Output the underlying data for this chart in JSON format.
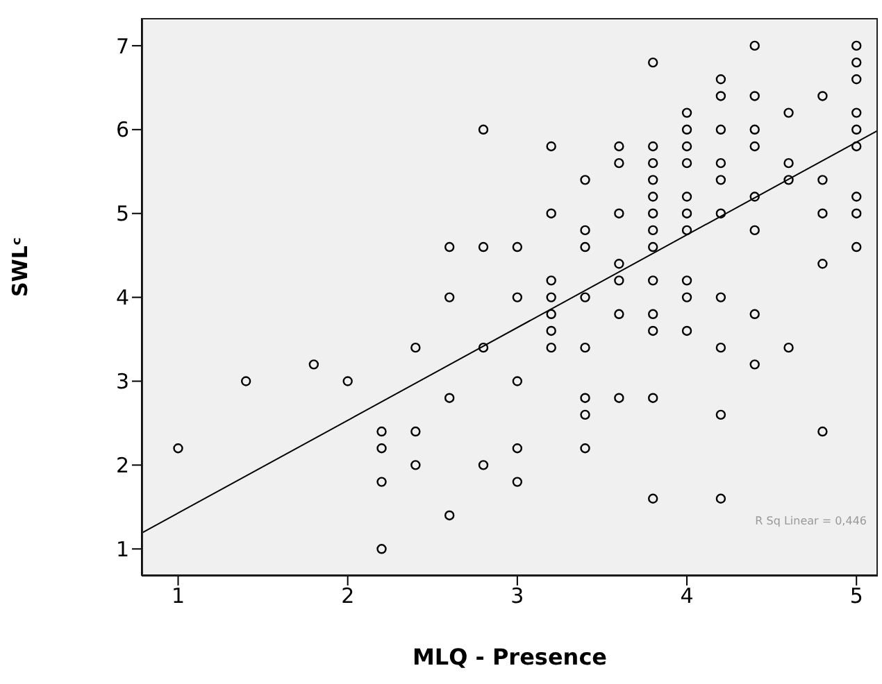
{
  "chart_data": {
    "type": "scatter",
    "xlabel": "MLQ - Presence",
    "ylabel": "SWLᶜ",
    "xlim": [
      0.785,
      5.126
    ],
    "ylim": [
      0.68,
      7.33
    ],
    "xticks": [
      1,
      2,
      3,
      4,
      5
    ],
    "yticks": [
      1,
      2,
      3,
      4,
      5,
      6,
      7
    ],
    "annotations": [
      "R Sq Linear = 0,446"
    ],
    "series": [
      {
        "marker": "circle",
        "color": "#000000",
        "x": [
          1,
          1.4,
          1.8,
          2,
          2.2,
          2.2,
          2.2,
          2.2,
          2.4,
          2.4,
          2.4,
          2.6,
          2.6,
          2.6,
          2.6,
          2.8,
          2.8,
          2.8,
          2.8,
          3,
          3,
          3,
          3,
          3,
          3.2,
          3.2,
          3.2,
          3.2,
          3.2,
          3.2,
          3.2,
          3.4,
          3.4,
          3.4,
          3.4,
          3.4,
          3.4,
          3.4,
          3.4,
          3.6,
          3.6,
          3.6,
          3.6,
          3.6,
          3.6,
          3.6,
          3.8,
          3.8,
          3.8,
          3.8,
          3.8,
          3.8,
          3.8,
          3.8,
          3.8,
          3.8,
          3.8,
          3.8,
          3.8,
          4,
          4,
          4,
          4,
          4,
          4,
          4,
          4,
          4,
          4,
          4.2,
          4.2,
          4.2,
          4.2,
          4.2,
          4.2,
          4.2,
          4.2,
          4.2,
          4.2,
          4.4,
          4.4,
          4.4,
          4.4,
          4.4,
          4.4,
          4.4,
          4.4,
          4.6,
          4.6,
          4.6,
          4.6,
          4.8,
          4.8,
          4.8,
          4.8,
          4.8,
          5,
          5,
          5,
          5,
          5,
          5,
          5,
          5,
          5
        ],
        "values": [
          2.2,
          3.0,
          3.2,
          3.0,
          2.4,
          2.2,
          1.8,
          1.0,
          3.4,
          2.4,
          2.0,
          4.6,
          4.0,
          2.8,
          1.4,
          6.0,
          4.6,
          3.4,
          2.0,
          4.6,
          4.0,
          3.0,
          2.2,
          1.8,
          5.8,
          5.0,
          4.2,
          4.0,
          3.8,
          3.6,
          3.4,
          5.4,
          4.8,
          4.6,
          4.0,
          3.4,
          2.8,
          2.6,
          2.2,
          5.8,
          5.6,
          5.0,
          4.4,
          4.2,
          3.8,
          2.8,
          6.8,
          5.8,
          5.6,
          5.4,
          5.2,
          5.0,
          4.8,
          4.6,
          4.2,
          3.8,
          3.6,
          2.8,
          1.6,
          6.2,
          6.0,
          5.8,
          5.6,
          5.2,
          5.0,
          4.8,
          4.2,
          4.0,
          3.6,
          6.6,
          6.4,
          6.0,
          5.6,
          5.4,
          5.0,
          4.0,
          3.4,
          2.6,
          1.6,
          7.0,
          6.4,
          6.0,
          5.8,
          5.2,
          4.8,
          3.8,
          3.2,
          6.2,
          5.6,
          5.4,
          3.4,
          6.4,
          5.4,
          5.0,
          4.4,
          2.4,
          7.0,
          6.8,
          6.6,
          6.2,
          6.0,
          5.8,
          5.2,
          5.0,
          4.6
        ]
      },
      {
        "type": "line",
        "marker": "none",
        "color": "#000000",
        "x": [
          0.785,
          5.126
        ],
        "values": [
          1.19,
          5.99
        ]
      }
    ]
  }
}
